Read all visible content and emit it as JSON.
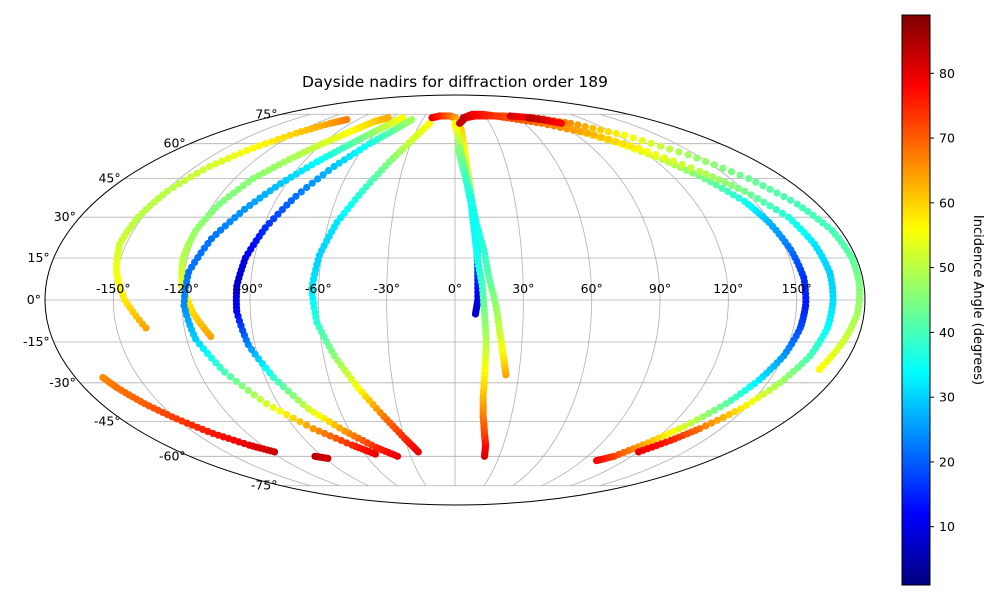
{
  "chart_data": {
    "type": "scatter",
    "projection": "mollweide",
    "title": "Dayside nadirs for diffraction order 189",
    "grid": true,
    "x_ticks": [
      "-150°",
      "-120°",
      "-90°",
      "-60°",
      "-30°",
      "0°",
      "30°",
      "60°",
      "90°",
      "120°",
      "150°"
    ],
    "y_ticks": [
      "75°",
      "60°",
      "45°",
      "30°",
      "15°",
      "0°",
      "-15°",
      "-30°",
      "-45°",
      "-60°",
      "-75°"
    ],
    "colorbar": {
      "label": "Incidence Angle (degrees)",
      "colormap": "jet",
      "range": [
        1,
        89
      ],
      "ticks": [
        "10",
        "20",
        "30",
        "40",
        "50",
        "60",
        "70",
        "80"
      ]
    },
    "series": [
      {
        "points": [
          [
            -137,
            -10,
            64
          ],
          [
            -145,
            0,
            58
          ],
          [
            -150,
            10,
            55
          ],
          [
            -153,
            20,
            52
          ],
          [
            -152,
            30,
            50
          ],
          [
            -149,
            40,
            50
          ],
          [
            -142,
            50,
            52
          ],
          [
            -132,
            58,
            56
          ],
          [
            -120,
            65,
            60
          ],
          [
            -108,
            70,
            64
          ],
          [
            -100,
            72,
            67
          ]
        ]
      },
      {
        "points": [
          [
            -109,
            -13,
            64
          ],
          [
            -115,
            -5,
            60
          ],
          [
            -120,
            5,
            55
          ],
          [
            -122,
            15,
            50
          ],
          [
            -121,
            25,
            47
          ],
          [
            -117,
            35,
            45
          ],
          [
            -110,
            45,
            46
          ],
          [
            -100,
            53,
            48
          ],
          [
            -90,
            60,
            52
          ],
          [
            -80,
            66,
            56
          ],
          [
            -72,
            71,
            60
          ],
          [
            -64,
            73,
            63
          ]
        ]
      },
      {
        "points": [
          [
            -53,
            -59,
            80
          ],
          [
            -64,
            -55,
            75
          ],
          [
            -80,
            -48,
            65
          ],
          [
            -96,
            -38,
            52
          ],
          [
            -108,
            -26,
            40
          ],
          [
            -116,
            -14,
            30
          ],
          [
            -119,
            -2,
            24
          ],
          [
            -118,
            10,
            22
          ],
          [
            -112,
            22,
            22
          ],
          [
            -103,
            33,
            25
          ],
          [
            -93,
            43,
            29
          ],
          [
            -82,
            52,
            34
          ],
          [
            -72,
            59,
            40
          ],
          [
            -63,
            65,
            46
          ],
          [
            -55,
            70,
            52
          ],
          [
            -50,
            73,
            56
          ]
        ]
      },
      {
        "points": [
          [
            -39,
            -60,
            80
          ],
          [
            -50,
            -56,
            75
          ],
          [
            -63,
            -49,
            65
          ],
          [
            -76,
            -40,
            52
          ],
          [
            -86,
            -28,
            38
          ],
          [
            -93,
            -16,
            24
          ],
          [
            -96,
            -4,
            12
          ],
          [
            -96,
            5,
            7
          ],
          [
            -94,
            15,
            10
          ],
          [
            -89,
            26,
            16
          ],
          [
            -81,
            38,
            22
          ],
          [
            -70,
            50,
            29
          ],
          [
            -58,
            60,
            36
          ],
          [
            -47,
            67,
            43
          ],
          [
            -40,
            72,
            48
          ]
        ]
      },
      {
        "points": [
          [
            -24,
            -58,
            80
          ],
          [
            -30,
            -52,
            75
          ],
          [
            -38,
            -43,
            68
          ],
          [
            -47,
            -32,
            56
          ],
          [
            -55,
            -20,
            46
          ],
          [
            -61,
            -8,
            38
          ],
          [
            -63,
            4,
            32
          ],
          [
            -61,
            16,
            30
          ],
          [
            -56,
            28,
            32
          ],
          [
            -48,
            40,
            38
          ],
          [
            -39,
            52,
            45
          ],
          [
            -30,
            62,
            52
          ],
          [
            -22,
            70,
            56
          ]
        ]
      },
      {
        "points": [
          [
            -22,
            73,
            80
          ],
          [
            -15,
            74,
            76
          ],
          [
            -5,
            74,
            70
          ],
          [
            0,
            73,
            66
          ],
          [
            3,
            71,
            63
          ],
          [
            5,
            66,
            60
          ],
          [
            6,
            58,
            57
          ],
          [
            7,
            48,
            52
          ],
          [
            8,
            40,
            46
          ],
          [
            9,
            30,
            38
          ],
          [
            10,
            20,
            28
          ],
          [
            10,
            10,
            18
          ],
          [
            10,
            0,
            10
          ],
          [
            9,
            -5,
            8
          ]
        ]
      },
      {
        "points": [
          [
            20,
            -60,
            82
          ],
          [
            19,
            -55,
            78
          ],
          [
            17,
            -50,
            73
          ],
          [
            15,
            -43,
            68
          ],
          [
            14,
            -35,
            62
          ],
          [
            14,
            -25,
            56
          ],
          [
            14,
            -15,
            50
          ],
          [
            13,
            -5,
            45
          ],
          [
            12,
            5,
            40
          ],
          [
            10,
            15,
            36
          ],
          [
            9,
            25,
            34
          ],
          [
            8,
            35,
            35
          ],
          [
            6,
            45,
            38
          ],
          [
            4,
            55,
            44
          ],
          [
            2,
            65,
            52
          ],
          [
            0,
            70,
            57
          ]
        ]
      },
      {
        "points": [
          [
            24,
            -27,
            64
          ],
          [
            22,
            -20,
            58
          ],
          [
            20,
            -12,
            52
          ],
          [
            18,
            -2,
            47
          ],
          [
            15,
            8,
            42
          ],
          [
            13,
            18,
            38
          ],
          [
            10,
            28,
            35
          ],
          [
            8,
            38,
            36
          ],
          [
            5,
            48,
            40
          ],
          [
            2,
            58,
            46
          ]
        ]
      },
      {
        "points": [
          [
            4,
            70,
            84
          ],
          [
            10,
            73,
            82
          ],
          [
            20,
            74,
            78
          ],
          [
            35,
            74,
            74
          ],
          [
            50,
            74,
            70
          ],
          [
            70,
            72,
            66
          ],
          [
            90,
            68,
            62
          ],
          [
            110,
            61,
            57
          ],
          [
            125,
            53,
            51
          ],
          [
            136,
            45,
            44
          ],
          [
            145,
            36,
            36
          ],
          [
            149,
            28,
            28
          ],
          [
            152,
            18,
            22
          ],
          [
            154,
            8,
            16
          ],
          [
            154,
            -2,
            14
          ],
          [
            153,
            -10,
            18
          ],
          [
            150,
            -20,
            25
          ],
          [
            145,
            -29,
            32
          ],
          [
            138,
            -38,
            42
          ],
          [
            128,
            -47,
            52
          ],
          [
            118,
            -54,
            62
          ],
          [
            108,
            -60,
            72
          ],
          [
            100,
            -62,
            78
          ]
        ]
      },
      {
        "points": [
          [
            8,
            73,
            84
          ],
          [
            18,
            75,
            80
          ],
          [
            30,
            75,
            76
          ],
          [
            50,
            73,
            72
          ],
          [
            75,
            70,
            68
          ],
          [
            100,
            65,
            63
          ],
          [
            120,
            58,
            57
          ],
          [
            138,
            48,
            50
          ],
          [
            150,
            40,
            44
          ],
          [
            160,
            30,
            37
          ],
          [
            164,
            20,
            32
          ],
          [
            166,
            10,
            30
          ],
          [
            166,
            0,
            31
          ],
          [
            165,
            -10,
            34
          ],
          [
            162,
            -20,
            40
          ],
          [
            156,
            -30,
            48
          ],
          [
            148,
            -40,
            58
          ],
          [
            138,
            -48,
            68
          ],
          [
            130,
            -53,
            75
          ],
          [
            120,
            -58,
            80
          ]
        ]
      },
      {
        "points": [
          [
            55,
            74,
            82
          ],
          [
            75,
            73,
            75
          ],
          [
            100,
            70,
            66
          ],
          [
            125,
            64,
            56
          ],
          [
            145,
            55,
            48
          ],
          [
            160,
            45,
            43
          ],
          [
            170,
            35,
            40
          ],
          [
            176,
            25,
            40
          ],
          [
            178,
            15,
            42
          ],
          [
            178,
            5,
            45
          ],
          [
            177,
            -5,
            48
          ],
          [
            174,
            -15,
            52
          ],
          [
            170,
            -25,
            56
          ]
        ]
      },
      {
        "points": [
          [
            70,
            73,
            84
          ],
          [
            80,
            72,
            82
          ],
          [
            92,
            70,
            78
          ]
        ]
      },
      {
        "points": [
          [
            -167,
            -28,
            66
          ],
          [
            -164,
            -32,
            68
          ],
          [
            -158,
            -38,
            70
          ],
          [
            -150,
            -44,
            73
          ],
          [
            -140,
            -50,
            76
          ],
          [
            -128,
            -55,
            80
          ],
          [
            -118,
            -58,
            82
          ]
        ]
      },
      {
        "points": [
          [
            -95,
            -60,
            84
          ],
          [
            -88,
            -61,
            82
          ]
        ]
      }
    ]
  }
}
